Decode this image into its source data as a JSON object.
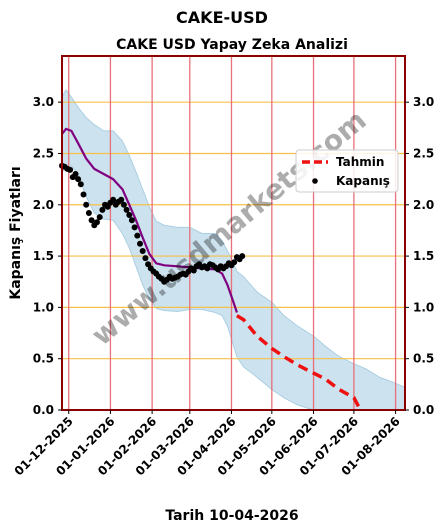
{
  "page_title": "CAKE-USD",
  "footer_date": "Tarih 10-04-2026",
  "watermark": "www.usdmarkets.com",
  "chart_data": {
    "type": "line",
    "title": "CAKE USD Yapay Zeka Analizi",
    "ylabel": "Kapanış Fiyatları",
    "xlabel": "",
    "x_axis": "date",
    "xlim": [
      "2025-11-26",
      "2026-08-08"
    ],
    "ylim": [
      0,
      3.45
    ],
    "y_ticks": [
      0.0,
      0.5,
      1.0,
      1.5,
      2.0,
      2.5,
      3.0
    ],
    "y_tick_labels": [
      "0.0",
      "0.5",
      "1.0",
      "1.5",
      "2.0",
      "2.5",
      "3.0"
    ],
    "x_ticks": [
      "2025-12-01",
      "2026-01-01",
      "2026-02-01",
      "2026-03-01",
      "2026-04-01",
      "2026-05-01",
      "2026-06-01",
      "2026-07-01",
      "2026-08-01"
    ],
    "x_tick_labels": [
      "01-12-2025",
      "01-01-2026",
      "01-02-2026",
      "01-03-2026",
      "01-04-2026",
      "01-05-2026",
      "01-06-2026",
      "01-07-2026",
      "01-08-2026"
    ],
    "legend_position": "right",
    "legend": [
      {
        "label": "Tahmin",
        "series": "forecast",
        "marker": "dashed-line"
      },
      {
        "label": "Kapanış",
        "series": "close",
        "marker": "dot"
      }
    ],
    "colors": {
      "frame": "#8b0000",
      "grid_h": "#f5c04a",
      "grid_v": "#e8707a",
      "band": "#aacfe3",
      "smooth": "#800080",
      "forecast": "#ee1111",
      "close": "#000000"
    },
    "series": [
      {
        "id": "close",
        "name": "Kapanış",
        "style": "dots",
        "x": [
          "2025-11-26",
          "2025-11-28",
          "2025-11-30",
          "2025-12-02",
          "2025-12-04",
          "2025-12-06",
          "2025-12-08",
          "2025-12-10",
          "2025-12-12",
          "2025-12-14",
          "2025-12-16",
          "2025-12-18",
          "2025-12-20",
          "2025-12-22",
          "2025-12-24",
          "2025-12-26",
          "2025-12-28",
          "2025-12-30",
          "2026-01-01",
          "2026-01-03",
          "2026-01-05",
          "2026-01-07",
          "2026-01-09",
          "2026-01-11",
          "2026-01-13",
          "2026-01-15",
          "2026-01-17",
          "2026-01-19",
          "2026-01-21",
          "2026-01-23",
          "2026-01-25",
          "2026-01-27",
          "2026-01-29",
          "2026-01-31",
          "2026-02-02",
          "2026-02-04",
          "2026-02-06",
          "2026-02-08",
          "2026-02-10",
          "2026-02-12",
          "2026-02-14",
          "2026-02-16",
          "2026-02-18",
          "2026-02-20",
          "2026-02-22",
          "2026-02-24",
          "2026-02-26",
          "2026-02-28",
          "2026-03-02",
          "2026-03-04",
          "2026-03-06",
          "2026-03-08",
          "2026-03-10",
          "2026-03-12",
          "2026-03-14",
          "2026-03-16",
          "2026-03-18",
          "2026-03-20",
          "2026-03-22",
          "2026-03-24",
          "2026-03-26",
          "2026-03-28",
          "2026-03-30",
          "2026-04-01",
          "2026-04-03",
          "2026-04-05",
          "2026-04-07",
          "2026-04-09"
        ],
        "y": [
          2.38,
          2.37,
          2.35,
          2.34,
          2.27,
          2.3,
          2.25,
          2.2,
          2.1,
          2.0,
          1.92,
          1.85,
          1.8,
          1.83,
          1.88,
          1.95,
          2.0,
          1.98,
          2.02,
          2.05,
          2.0,
          2.03,
          2.05,
          2.0,
          1.95,
          1.9,
          1.85,
          1.78,
          1.7,
          1.62,
          1.55,
          1.48,
          1.42,
          1.38,
          1.35,
          1.33,
          1.3,
          1.28,
          1.25,
          1.27,
          1.3,
          1.28,
          1.29,
          1.3,
          1.32,
          1.33,
          1.32,
          1.35,
          1.38,
          1.36,
          1.4,
          1.42,
          1.39,
          1.4,
          1.38,
          1.42,
          1.41,
          1.39,
          1.37,
          1.4,
          1.38,
          1.4,
          1.43,
          1.41,
          1.44,
          1.49,
          1.47,
          1.5
        ]
      },
      {
        "id": "smooth",
        "name": "",
        "style": "line",
        "x": [
          "2025-11-26",
          "2025-11-29",
          "2025-12-03",
          "2025-12-08",
          "2025-12-14",
          "2025-12-20",
          "2025-12-27",
          "2026-01-03",
          "2026-01-10",
          "2026-01-15",
          "2026-01-20",
          "2026-01-25",
          "2026-01-30",
          "2026-02-04",
          "2026-02-10",
          "2026-02-20",
          "2026-03-01",
          "2026-03-10",
          "2026-03-20",
          "2026-03-25",
          "2026-03-29",
          "2026-04-02",
          "2026-04-05"
        ],
        "y": [
          2.69,
          2.74,
          2.72,
          2.6,
          2.45,
          2.35,
          2.3,
          2.25,
          2.15,
          2.0,
          1.85,
          1.68,
          1.52,
          1.43,
          1.41,
          1.4,
          1.39,
          1.38,
          1.37,
          1.33,
          1.22,
          1.07,
          0.95
        ]
      },
      {
        "id": "forecast",
        "name": "Tahmin",
        "style": "dashed",
        "x": [
          "2026-04-05",
          "2026-04-10",
          "2026-04-20",
          "2026-05-01",
          "2026-05-10",
          "2026-05-20",
          "2026-06-01",
          "2026-06-10",
          "2026-06-20",
          "2026-07-01",
          "2026-07-05"
        ],
        "y": [
          0.92,
          0.88,
          0.72,
          0.6,
          0.52,
          0.44,
          0.36,
          0.3,
          0.2,
          0.12,
          0.02
        ]
      },
      {
        "id": "band",
        "name": "",
        "style": "band",
        "x": [
          "2025-11-26",
          "2025-11-29",
          "2025-12-03",
          "2025-12-08",
          "2025-12-14",
          "2025-12-20",
          "2025-12-27",
          "2026-01-03",
          "2026-01-10",
          "2026-01-15",
          "2026-01-20",
          "2026-01-25",
          "2026-01-30",
          "2026-02-04",
          "2026-02-10",
          "2026-02-20",
          "2026-03-01",
          "2026-03-10",
          "2026-03-20",
          "2026-03-25",
          "2026-03-29",
          "2026-04-02",
          "2026-04-05",
          "2026-04-10",
          "2026-04-20",
          "2026-05-01",
          "2026-05-10",
          "2026-05-20",
          "2026-06-01",
          "2026-06-10",
          "2026-06-20",
          "2026-07-01",
          "2026-07-10",
          "2026-07-20",
          "2026-08-01",
          "2026-08-08"
        ],
        "upper": [
          3.05,
          3.12,
          3.05,
          2.95,
          2.85,
          2.78,
          2.72,
          2.72,
          2.62,
          2.48,
          2.32,
          2.15,
          1.98,
          1.84,
          1.8,
          1.78,
          1.78,
          1.72,
          1.72,
          1.65,
          1.55,
          1.45,
          1.35,
          1.3,
          1.15,
          1.05,
          0.92,
          0.82,
          0.72,
          0.62,
          0.52,
          0.45,
          0.4,
          0.32,
          0.26,
          0.22
        ],
        "lower": [
          2.32,
          2.35,
          2.38,
          2.3,
          2.08,
          1.92,
          1.86,
          1.85,
          1.72,
          1.58,
          1.4,
          1.22,
          1.08,
          0.99,
          0.97,
          0.96,
          0.98,
          0.98,
          0.95,
          0.92,
          0.82,
          0.65,
          0.52,
          0.42,
          0.32,
          0.2,
          0.12,
          0.05,
          0.0,
          0.0,
          0.0,
          0.0,
          0.0,
          0.0,
          0.0,
          0.0
        ]
      }
    ]
  }
}
